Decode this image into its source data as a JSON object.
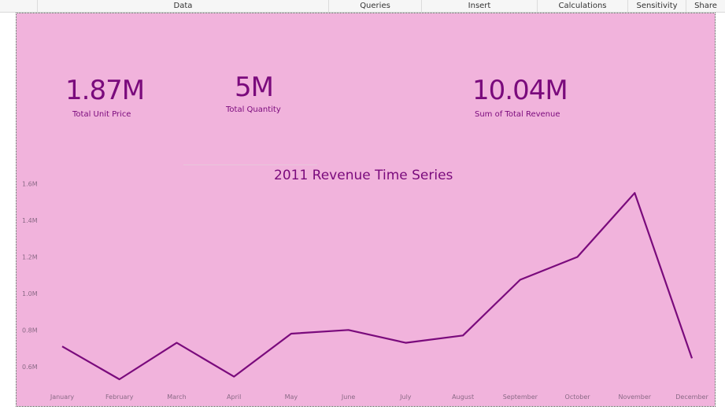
{
  "ribbon": {
    "groups": [
      "Data",
      "Queries",
      "Insert",
      "Calculations",
      "Sensitivity",
      "Share"
    ]
  },
  "theme": {
    "canvas_bg": "#f1b3dc",
    "accent": "#7a0a7c",
    "axis_text": "#8a6a86"
  },
  "kpis": [
    {
      "value": "1.87M",
      "label": "Total Unit Price"
    },
    {
      "value": "5M",
      "label": "Total Quantity"
    },
    {
      "value": "10.04M",
      "label": "Sum of Total Revenue"
    }
  ],
  "chart_data": {
    "type": "line",
    "title": "2011 Revenue Time Series",
    "xlabel": "",
    "ylabel": "",
    "categories": [
      "January",
      "February",
      "March",
      "April",
      "May",
      "June",
      "July",
      "August",
      "September",
      "October",
      "November",
      "December"
    ],
    "values": [
      710000,
      530000,
      730000,
      545000,
      780000,
      800000,
      730000,
      770000,
      1075000,
      1200000,
      1550000,
      645000
    ],
    "ylim": [
      500000,
      1650000
    ],
    "yticks": [
      600000,
      800000,
      1000000,
      1200000,
      1400000,
      1600000
    ],
    "ytick_labels": [
      "0.6M",
      "0.8M",
      "1.0M",
      "1.2M",
      "1.4M",
      "1.6M"
    ],
    "grid": false,
    "legend": "none"
  }
}
